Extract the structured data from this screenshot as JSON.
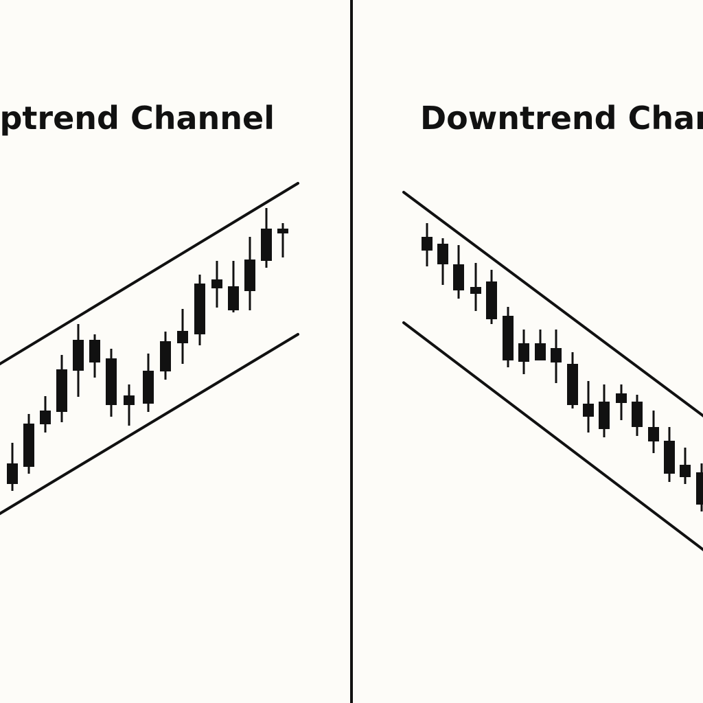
{
  "left_panel": {
    "title": "Uptrend Channel"
  },
  "right_panel": {
    "title": "Downtrend Channel"
  }
}
